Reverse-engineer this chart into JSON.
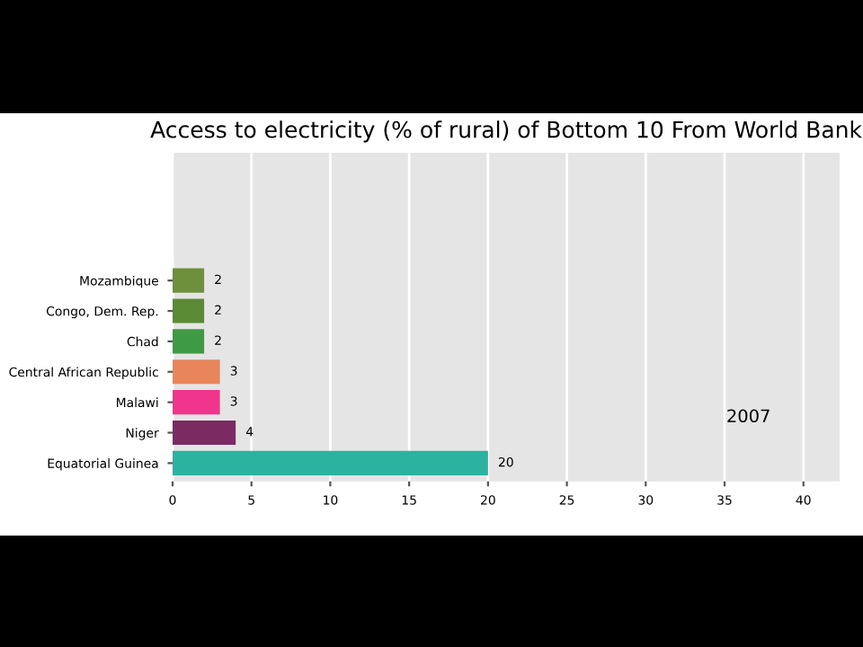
{
  "chart_data": {
    "type": "bar",
    "orientation": "horizontal",
    "title": "Access to electricity (% of rural) of Bottom 10 From World Bank",
    "categories": [
      "Mozambique",
      "Congo, Dem. Rep.",
      "Chad",
      "Central African Republic",
      "Malawi",
      "Niger",
      "Equatorial Guinea"
    ],
    "values": [
      2,
      2,
      2,
      3,
      3,
      4,
      20
    ],
    "colors": [
      "#6e8f3c",
      "#5b8a35",
      "#3f9a45",
      "#e8855a",
      "#f0358c",
      "#7c2b62",
      "#2bb3a0"
    ],
    "data_labels": true,
    "xlim": [
      0,
      42.3
    ],
    "xticks": [
      0,
      5,
      10,
      15,
      20,
      25,
      30,
      35,
      40
    ],
    "grid": "x",
    "annotations": [
      "2007"
    ]
  }
}
